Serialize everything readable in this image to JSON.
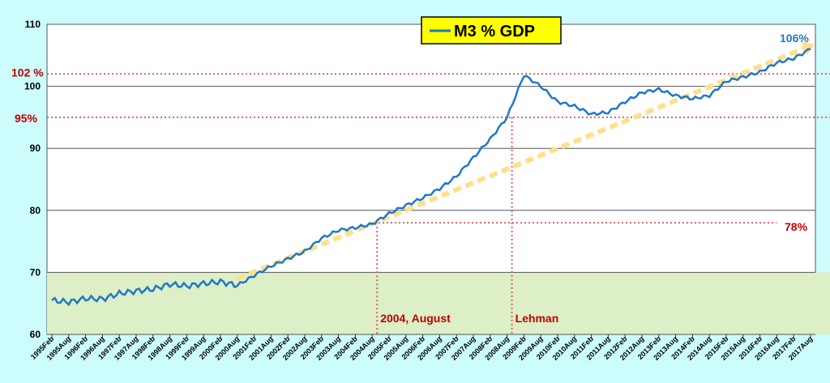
{
  "chart_data": {
    "type": "line",
    "title": "M3 % GDP",
    "ylim": [
      60,
      110
    ],
    "yticks": [
      60,
      70,
      80,
      90,
      100,
      110
    ],
    "x_categories": [
      "1995Feb",
      "1995Aug",
      "1996Feb",
      "1996Aug",
      "1997Feb",
      "1997Aug",
      "1998Feb",
      "1998Aug",
      "1999Feb",
      "1999Aug",
      "2000Feb",
      "2000Aug",
      "2001Feb",
      "2001Aug",
      "2002Feb",
      "2002Aug",
      "2003Feb",
      "2003Aug",
      "2004Feb",
      "2004Aug",
      "2005Feb",
      "2005Aug",
      "2006Feb",
      "2006Aug",
      "2007Feb",
      "2007Aug",
      "2008Feb",
      "2008Aug",
      "2009Feb",
      "2009Aug",
      "2010Feb",
      "2010Aug",
      "2011Feb",
      "2011Aug",
      "2012Feb",
      "2012Aug",
      "2013Feb",
      "2013Aug",
      "2014Feb",
      "2014Aug",
      "2015Feb",
      "2015Aug",
      "2016Feb",
      "2016Aug",
      "2017Feb",
      "2017Aug"
    ],
    "series": [
      {
        "name": "M3 % GDP",
        "color": "#1f78c8",
        "values": [
          65.5,
          65.2,
          65.8,
          65.7,
          66.6,
          67.0,
          67.3,
          68.1,
          67.8,
          68.2,
          68.5,
          67.9,
          69.5,
          71.0,
          72.2,
          73.4,
          75.5,
          76.8,
          77.2,
          77.8,
          79.5,
          80.8,
          82.0,
          83.5,
          85.5,
          88.5,
          91.5,
          95.0,
          101.8,
          100.0,
          97.5,
          96.8,
          95.5,
          95.8,
          97.5,
          99.0,
          99.5,
          98.5,
          98.0,
          98.5,
          100.8,
          101.5,
          102.3,
          103.8,
          104.5,
          106.0
        ]
      }
    ],
    "trend_line": {
      "color": "#ffe08a",
      "from": [
        2000.6,
        69.0
      ],
      "to": [
        2017.6,
        106.5
      ]
    },
    "shaded_band": {
      "from": 60,
      "to": 70,
      "color": "#dcefc6"
    },
    "reference_lines": [
      {
        "y": 102,
        "label": "102 %"
      },
      {
        "y": 95,
        "label": "95%"
      },
      {
        "y": 78,
        "label": "78%"
      }
    ],
    "vertical_markers": [
      {
        "x": "2004Aug",
        "label": "2004, August"
      },
      {
        "x": "2008Aug",
        "label": "Lehman"
      }
    ],
    "end_label": "106%"
  }
}
